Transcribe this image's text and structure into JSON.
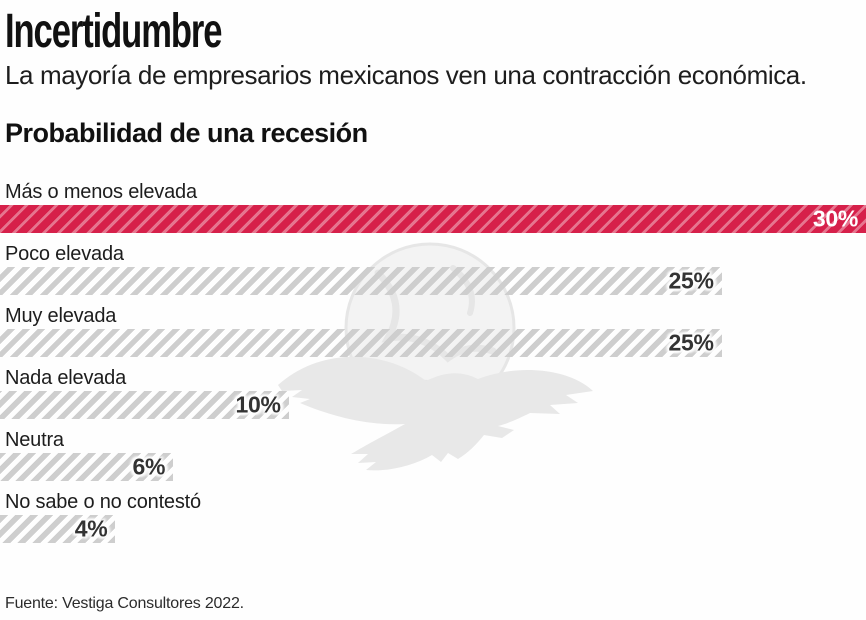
{
  "header": {
    "title": "Incertidumbre",
    "subtitle": "La mayoría de empresarios mexicanos ven una contracción económica."
  },
  "chart_data": {
    "type": "bar",
    "orientation": "horizontal",
    "title": "Probabilidad de una recesión",
    "categories": [
      "Más o menos elevada",
      "Poco elevada",
      "Muy elevada",
      "Nada elevada",
      "Neutra",
      "No sabe o no contestó"
    ],
    "values": [
      30,
      25,
      25,
      10,
      6,
      4
    ],
    "value_labels": [
      "30%",
      "25%",
      "25%",
      "10%",
      "6%",
      "4%"
    ],
    "unit": "%",
    "xlim": [
      0,
      30
    ],
    "highlight_index": 0,
    "grid": false,
    "legend": false,
    "style": "diagonal-hatched-bars",
    "colors": {
      "highlight_bar": "#d6204a",
      "highlight_stripe": "rgba(255,255,255,0.38)",
      "bar_stripe": "#cecece",
      "value_text": "#333333",
      "value_text_highlight": "#ffffff",
      "watermark_gray": "#e8e8e8"
    }
  },
  "watermark": {
    "icon": "eagle-globe-logo-watermark"
  },
  "footer": {
    "source": "Fuente: Vestiga Consultores 2022."
  }
}
